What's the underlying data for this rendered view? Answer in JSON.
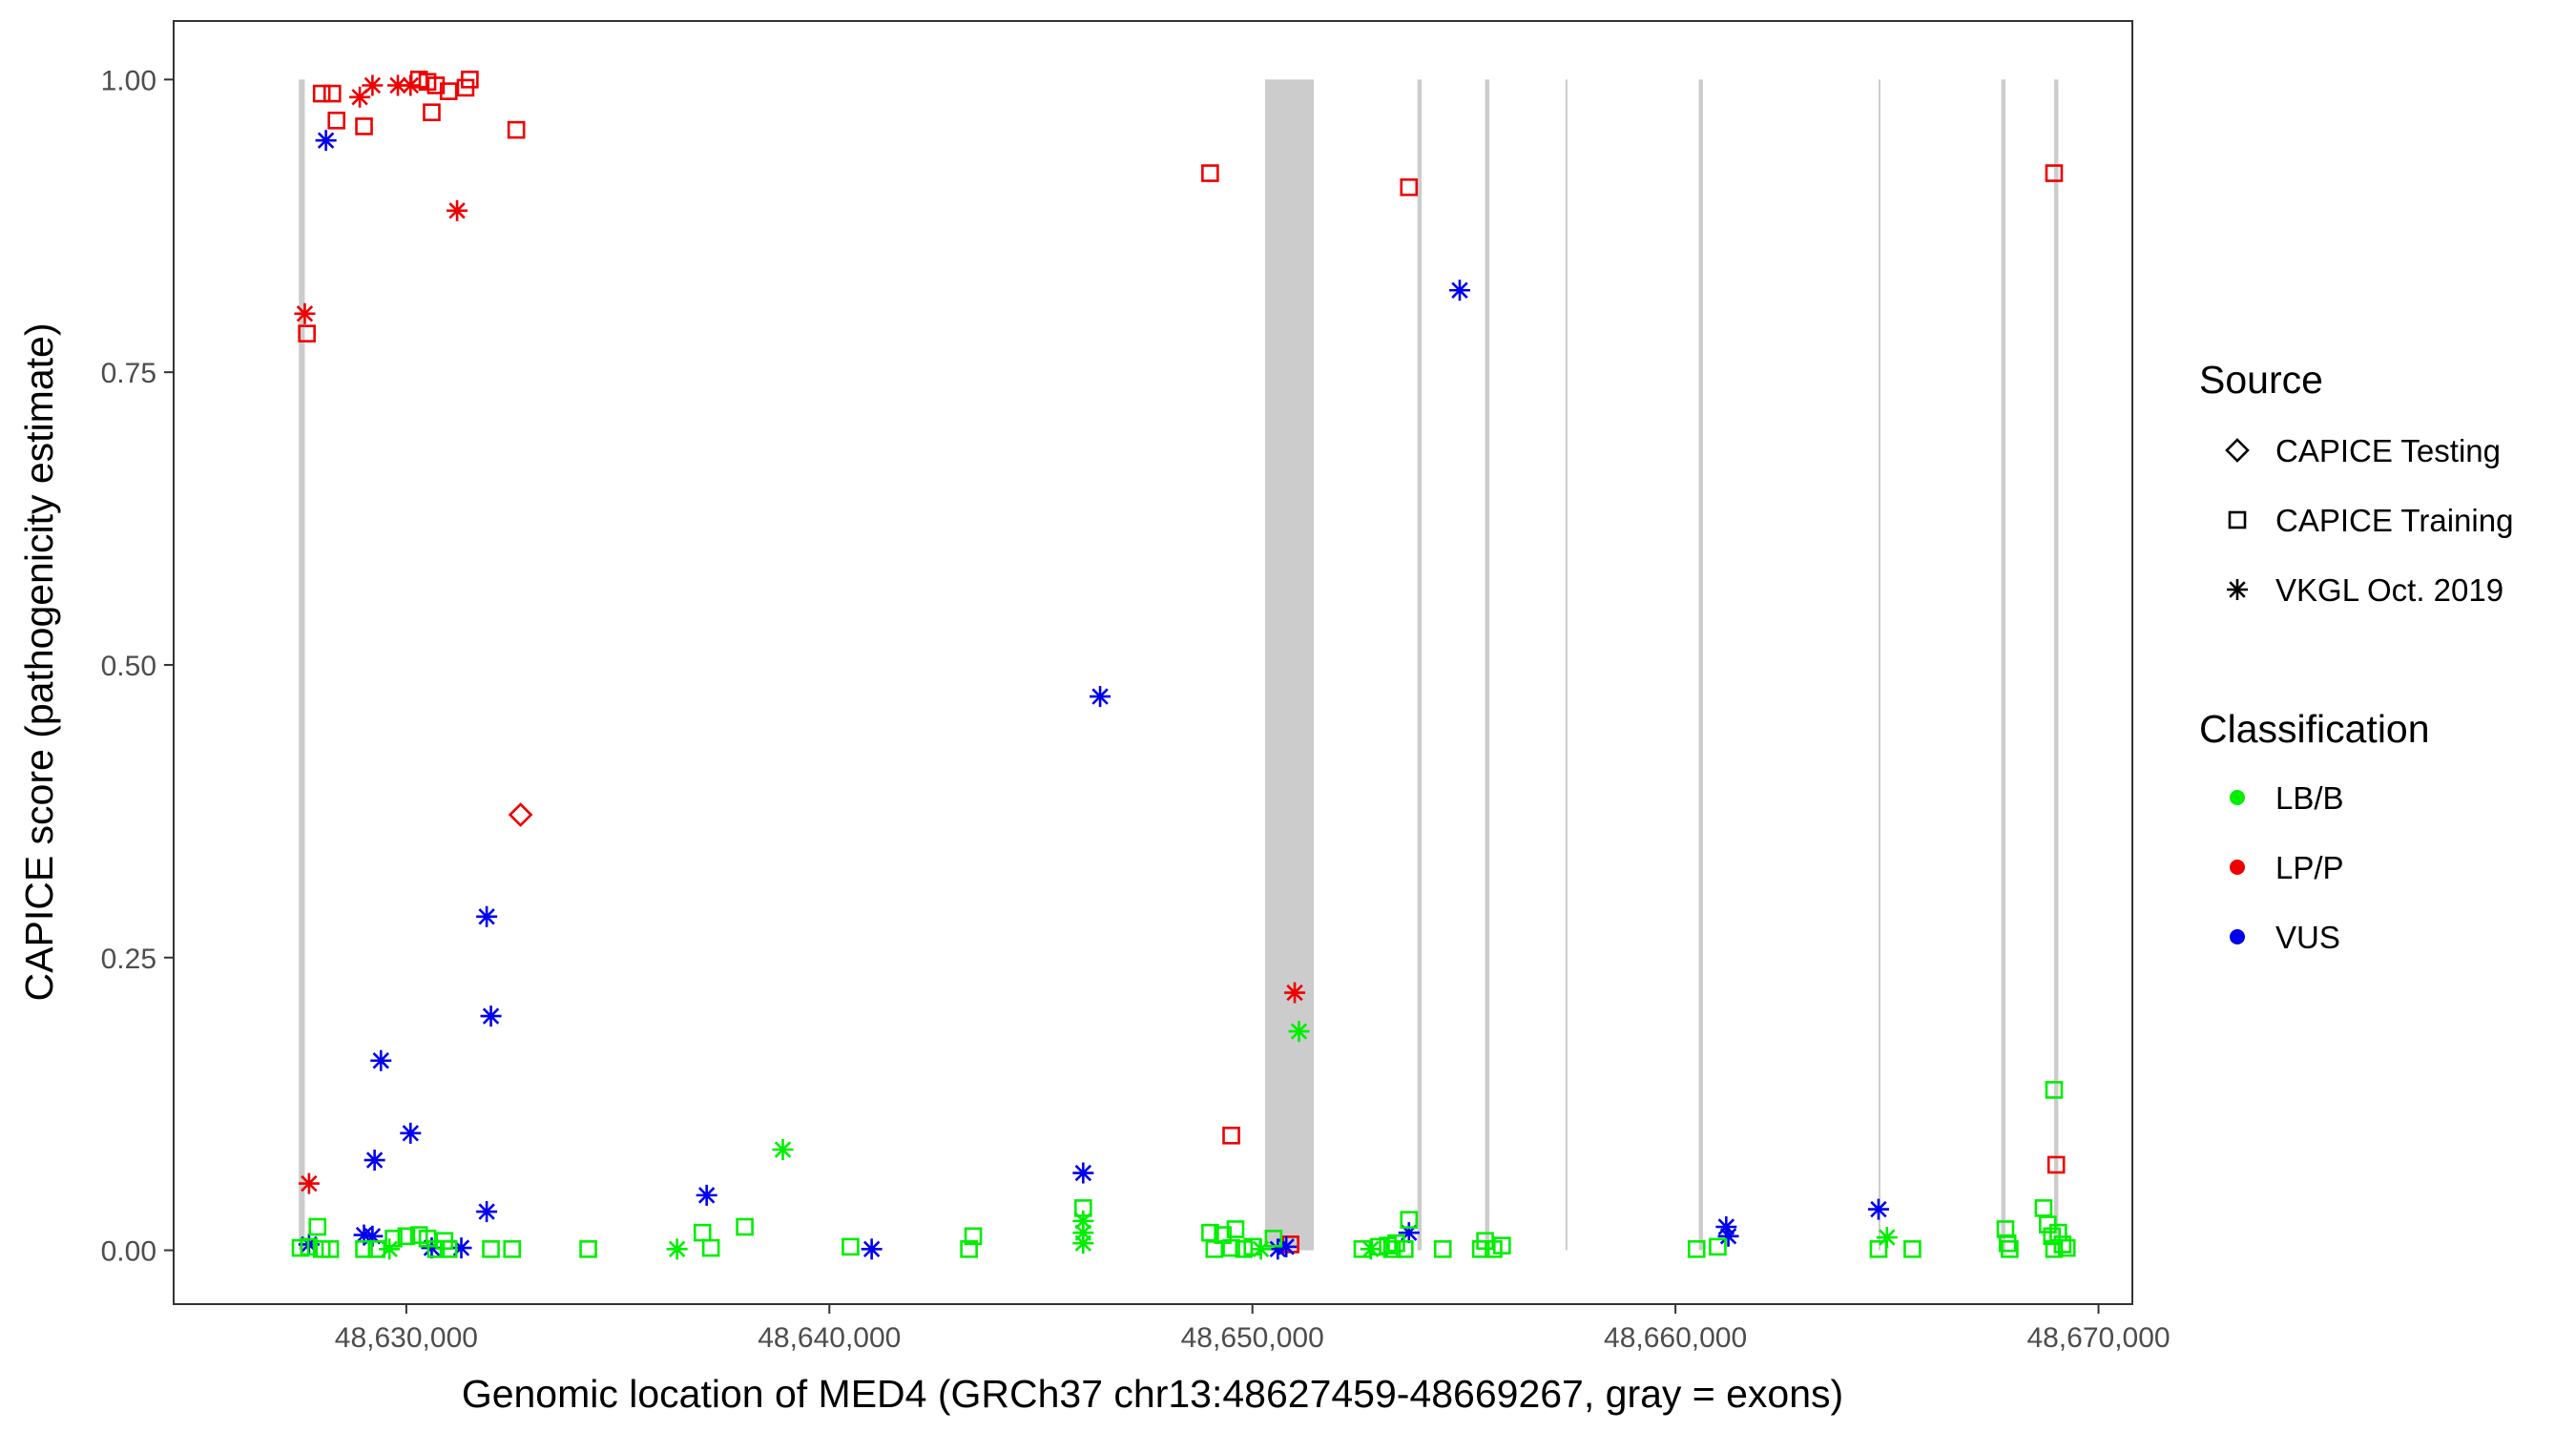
{
  "chart_data": {
    "type": "scatter",
    "xlabel": "Genomic location of MED4 (GRCh37 chr13:48627459-48669267, gray = exons)",
    "ylabel": "CAPICE score (pathogenicity estimate)",
    "xlim": [
      48624500,
      48670800
    ],
    "ylim": [
      -0.046,
      1.05
    ],
    "x_ticks": [
      48630000,
      48640000,
      48650000,
      48660000,
      48670000
    ],
    "x_tick_labels": [
      "48,630,000",
      "48,640,000",
      "48,650,000",
      "48,660,000",
      "48,670,000"
    ],
    "y_ticks": [
      0,
      0.25,
      0.5,
      0.75,
      1.0
    ],
    "y_tick_labels": [
      "0.00",
      "0.25",
      "0.50",
      "0.75",
      "1.00"
    ],
    "grid": false,
    "exons": [
      [
        48627459,
        48627600
      ],
      [
        48650300,
        48651450
      ],
      [
        48653900,
        48654000
      ],
      [
        48655500,
        48655600
      ],
      [
        48657400,
        48657430
      ],
      [
        48660550,
        48660650
      ],
      [
        48664800,
        48664830
      ],
      [
        48667700,
        48667800
      ],
      [
        48668950,
        48669050
      ]
    ],
    "legend": {
      "position": "right",
      "source": {
        "title": "Source",
        "items": [
          {
            "label": "CAPICE Testing",
            "shape": "diamond"
          },
          {
            "label": "CAPICE Training",
            "shape": "square"
          },
          {
            "label": "VKGL Oct. 2019",
            "shape": "asterisk"
          }
        ]
      },
      "classification": {
        "title": "Classification",
        "items": [
          {
            "label": "LB/B",
            "color": "#00ee00"
          },
          {
            "label": "LP/P",
            "color": "#ee0000"
          },
          {
            "label": "VUS",
            "color": "#0000ee"
          }
        ]
      }
    },
    "colors": {
      "LB/B": "#00ee00",
      "LP/P": "#ee0000",
      "VUS": "#0000ee",
      "exon": "#cccccc"
    },
    "series": [
      {
        "name": "LP/P",
        "points": [
          [
            48627600,
            0.8,
            "asterisk"
          ],
          [
            48627650,
            0.783,
            "square"
          ],
          [
            48627700,
            0.057,
            "asterisk"
          ],
          [
            48628000,
            0.988,
            "square"
          ],
          [
            48628250,
            0.988,
            "square"
          ],
          [
            48628350,
            0.965,
            "square"
          ],
          [
            48628900,
            0.985,
            "asterisk"
          ],
          [
            48629000,
            0.96,
            "square"
          ],
          [
            48629200,
            0.995,
            "asterisk"
          ],
          [
            48629800,
            0.995,
            "asterisk"
          ],
          [
            48630100,
            0.995,
            "asterisk"
          ],
          [
            48630300,
            1.0,
            "square"
          ],
          [
            48630500,
            0.998,
            "square"
          ],
          [
            48630600,
            0.972,
            "square"
          ],
          [
            48630700,
            0.995,
            "square"
          ],
          [
            48631000,
            0.99,
            "square"
          ],
          [
            48631200,
            0.888,
            "asterisk"
          ],
          [
            48631400,
            0.993,
            "square"
          ],
          [
            48631500,
            1.0,
            "square"
          ],
          [
            48632600,
            0.957,
            "square"
          ],
          [
            48632700,
            0.372,
            "diamond"
          ],
          [
            48649000,
            0.92,
            "square"
          ],
          [
            48649500,
            0.098,
            "square"
          ],
          [
            48651000,
            0.22,
            "asterisk"
          ],
          [
            48650900,
            0.005,
            "square"
          ],
          [
            48653700,
            0.908,
            "square"
          ],
          [
            48668950,
            0.92,
            "square"
          ],
          [
            48669000,
            0.073,
            "square"
          ]
        ]
      },
      {
        "name": "VUS",
        "points": [
          [
            48627700,
            0.005,
            "asterisk"
          ],
          [
            48628100,
            0.948,
            "asterisk"
          ],
          [
            48629000,
            0.013,
            "asterisk"
          ],
          [
            48629200,
            0.012,
            "asterisk"
          ],
          [
            48629250,
            0.077,
            "asterisk"
          ],
          [
            48629400,
            0.162,
            "asterisk"
          ],
          [
            48630100,
            0.1,
            "asterisk"
          ],
          [
            48630600,
            0.002,
            "asterisk"
          ],
          [
            48631300,
            0.002,
            "asterisk"
          ],
          [
            48631900,
            0.285,
            "asterisk"
          ],
          [
            48632000,
            0.2,
            "asterisk"
          ],
          [
            48631900,
            0.033,
            "asterisk"
          ],
          [
            48637100,
            0.047,
            "asterisk"
          ],
          [
            48641000,
            0.001,
            "asterisk"
          ],
          [
            48646000,
            0.066,
            "asterisk"
          ],
          [
            48646400,
            0.473,
            "asterisk"
          ],
          [
            48650600,
            0.001,
            "asterisk"
          ],
          [
            48650800,
            0.003,
            "asterisk"
          ],
          [
            48653700,
            0.015,
            "asterisk"
          ],
          [
            48654900,
            0.82,
            "asterisk"
          ],
          [
            48661200,
            0.02,
            "asterisk"
          ],
          [
            48661250,
            0.012,
            "asterisk"
          ],
          [
            48664800,
            0.035,
            "asterisk"
          ]
        ]
      },
      {
        "name": "LB/B",
        "points": [
          [
            48627500,
            0.002,
            "square"
          ],
          [
            48627700,
            0.003,
            "square"
          ],
          [
            48627900,
            0.02,
            "square"
          ],
          [
            48628000,
            0.001,
            "square"
          ],
          [
            48628200,
            0.001,
            "square"
          ],
          [
            48629000,
            0.001,
            "square"
          ],
          [
            48629300,
            0.001,
            "square"
          ],
          [
            48629600,
            0.001,
            "asterisk"
          ],
          [
            48629700,
            0.01,
            "square"
          ],
          [
            48630000,
            0.012,
            "square"
          ],
          [
            48630300,
            0.013,
            "square"
          ],
          [
            48630500,
            0.01,
            "square"
          ],
          [
            48630700,
            0.001,
            "square"
          ],
          [
            48630900,
            0.008,
            "square"
          ],
          [
            48631000,
            0.001,
            "square"
          ],
          [
            48632000,
            0.001,
            "square"
          ],
          [
            48632500,
            0.001,
            "square"
          ],
          [
            48634300,
            0.001,
            "square"
          ],
          [
            48636400,
            0.001,
            "asterisk"
          ],
          [
            48637000,
            0.015,
            "square"
          ],
          [
            48637200,
            0.002,
            "square"
          ],
          [
            48638000,
            0.02,
            "square"
          ],
          [
            48638900,
            0.086,
            "asterisk"
          ],
          [
            48640500,
            0.003,
            "square"
          ],
          [
            48643400,
            0.012,
            "square"
          ],
          [
            48643300,
            0.001,
            "square"
          ],
          [
            48646000,
            0.036,
            "square"
          ],
          [
            48646000,
            0.025,
            "asterisk"
          ],
          [
            48646000,
            0.015,
            "asterisk"
          ],
          [
            48646000,
            0.006,
            "asterisk"
          ],
          [
            48649000,
            0.015,
            "square"
          ],
          [
            48649100,
            0.001,
            "square"
          ],
          [
            48649300,
            0.013,
            "square"
          ],
          [
            48649500,
            0.002,
            "square"
          ],
          [
            48649600,
            0.018,
            "square"
          ],
          [
            48649800,
            0.001,
            "square"
          ],
          [
            48650000,
            0.003,
            "square"
          ],
          [
            48650200,
            0.001,
            "asterisk"
          ],
          [
            48650500,
            0.01,
            "square"
          ],
          [
            48651100,
            0.187,
            "asterisk"
          ],
          [
            48652600,
            0.001,
            "square"
          ],
          [
            48652800,
            0.001,
            "asterisk"
          ],
          [
            48653000,
            0.003,
            "square"
          ],
          [
            48653200,
            0.004,
            "square"
          ],
          [
            48653300,
            0.001,
            "square"
          ],
          [
            48653400,
            0.006,
            "square"
          ],
          [
            48653600,
            0.001,
            "square"
          ],
          [
            48653700,
            0.026,
            "square"
          ],
          [
            48654500,
            0.001,
            "square"
          ],
          [
            48655400,
            0.001,
            "square"
          ],
          [
            48655500,
            0.008,
            "square"
          ],
          [
            48655700,
            0.001,
            "square"
          ],
          [
            48655900,
            0.004,
            "square"
          ],
          [
            48660500,
            0.001,
            "square"
          ],
          [
            48661000,
            0.003,
            "square"
          ],
          [
            48664800,
            0.001,
            "square"
          ],
          [
            48665000,
            0.011,
            "asterisk"
          ],
          [
            48665600,
            0.001,
            "square"
          ],
          [
            48667800,
            0.018,
            "square"
          ],
          [
            48667850,
            0.006,
            "square"
          ],
          [
            48667900,
            0.001,
            "square"
          ],
          [
            48668700,
            0.036,
            "square"
          ],
          [
            48668800,
            0.022,
            "square"
          ],
          [
            48668900,
            0.012,
            "square"
          ],
          [
            48668950,
            0.001,
            "square"
          ],
          [
            48668950,
            0.137,
            "square"
          ],
          [
            48669050,
            0.015,
            "square"
          ],
          [
            48669150,
            0.005,
            "square"
          ],
          [
            48669250,
            0.002,
            "square"
          ]
        ]
      }
    ]
  }
}
